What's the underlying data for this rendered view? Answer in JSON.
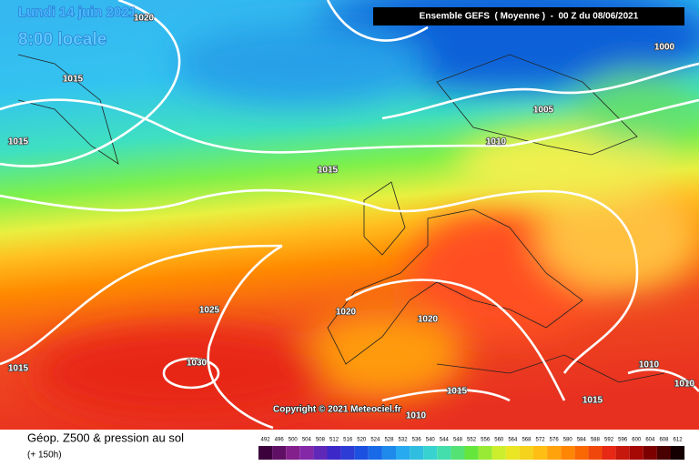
{
  "header": {
    "date": "Lundi 14 juin 2021",
    "time": "8:00 locale",
    "run": "Ensemble GEFS  ( Moyenne )  -  00 Z du 08/06/2021"
  },
  "isobars": [
    "1020",
    "1015",
    "1015",
    "1000",
    "1005",
    "1010",
    "1015",
    "1025",
    "1020",
    "1020",
    "1030",
    "1015",
    "1015",
    "1010",
    "1015",
    "1010",
    "1010"
  ],
  "copyright": "Copyright © 2021 Meteociel.fr",
  "footer": {
    "title": "Géop. Z500 & pression au sol",
    "lead": "(+ 150h)"
  },
  "legend": {
    "values": [
      492,
      496,
      500,
      504,
      508,
      512,
      516,
      520,
      524,
      528,
      532,
      536,
      540,
      544,
      548,
      552,
      556,
      560,
      564,
      568,
      572,
      576,
      580,
      584,
      588,
      592,
      596,
      600,
      604,
      608,
      612
    ]
  }
}
